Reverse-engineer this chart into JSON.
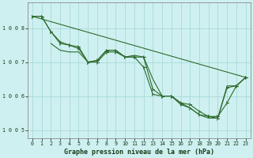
{
  "title": "Graphe pression niveau de la mer (hPa)",
  "background_color": "#cff0f0",
  "grid_color": "#a8dada",
  "line_color": "#2d6b2d",
  "marker_color": "#2d6b2d",
  "xlim": [
    -0.5,
    23.5
  ],
  "ylim": [
    1004.75,
    1008.75
  ],
  "yticks": [
    1005,
    1006,
    1007,
    1008
  ],
  "xtick_labels": [
    "0",
    "1",
    "2",
    "3",
    "4",
    "5",
    "6",
    "7",
    "8",
    "9",
    "10",
    "11",
    "12",
    "13",
    "14",
    "15",
    "16",
    "17",
    "18",
    "19",
    "20",
    "21",
    "22",
    "23"
  ],
  "series": [
    {
      "x": [
        0,
        23
      ],
      "y": [
        1008.35,
        1006.55
      ],
      "marker": false
    },
    {
      "x": [
        0,
        1,
        2,
        3,
        4,
        5,
        6,
        7,
        8,
        9,
        10,
        11,
        12,
        13,
        14,
        15,
        16,
        17,
        18,
        19,
        20,
        21,
        22,
        23
      ],
      "y": [
        1008.35,
        1008.35,
        1007.9,
        1007.55,
        1007.5,
        1007.45,
        1007.0,
        1007.0,
        1007.3,
        1007.3,
        1007.15,
        1007.15,
        1006.85,
        1006.05,
        1006.0,
        1006.0,
        1005.8,
        1005.75,
        1005.55,
        1005.4,
        1005.4,
        1005.8,
        1006.3,
        1006.55
      ],
      "marker": true
    },
    {
      "x": [
        0,
        1,
        2,
        3,
        4,
        5,
        6,
        7,
        8,
        9,
        10,
        11,
        12,
        13,
        14,
        15,
        16,
        17,
        18,
        19,
        20,
        21,
        22,
        23
      ],
      "y": [
        1008.35,
        1008.35,
        1007.9,
        1007.6,
        1007.5,
        1007.4,
        1007.0,
        1007.05,
        1007.35,
        1007.35,
        1007.15,
        1007.15,
        1007.15,
        1006.2,
        1006.0,
        1006.0,
        1005.75,
        1005.65,
        1005.45,
        1005.4,
        1005.35,
        1006.25,
        1006.3,
        1006.55
      ],
      "marker": true
    },
    {
      "x": [
        2,
        3,
        4,
        5,
        6,
        7,
        8,
        9,
        10,
        11,
        12,
        13,
        14,
        15,
        16,
        17,
        18,
        19,
        20,
        21,
        22,
        23
      ],
      "y": [
        1007.55,
        1007.35,
        1007.3,
        1007.3,
        1007.0,
        1007.05,
        1007.35,
        1007.35,
        1007.15,
        1007.2,
        1007.15,
        1006.5,
        1006.0,
        1006.0,
        1005.8,
        1005.65,
        1005.45,
        1005.35,
        1005.35,
        1006.3,
        1006.3,
        1006.55
      ],
      "marker": false
    }
  ]
}
